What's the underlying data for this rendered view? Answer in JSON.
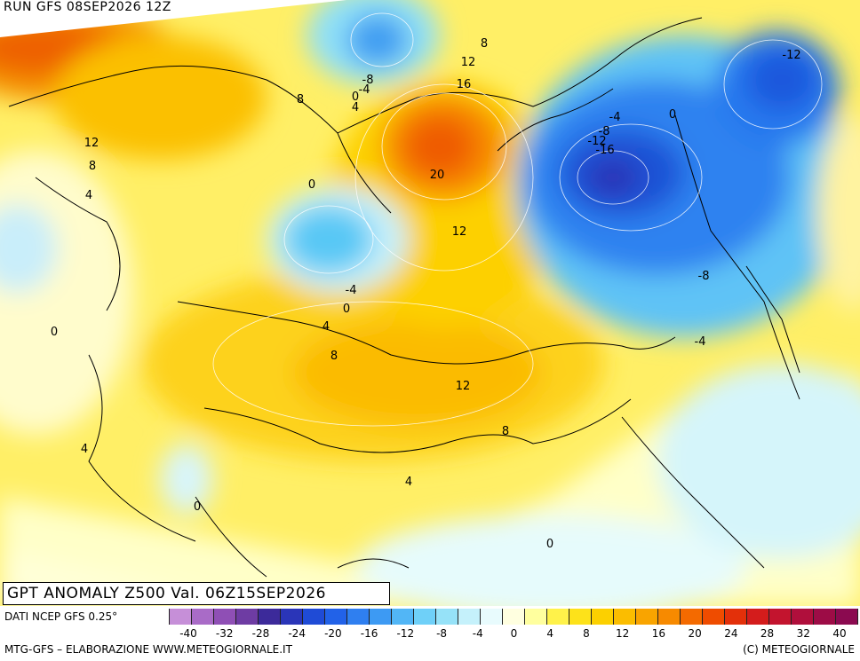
{
  "header": {
    "run": "RUN GFS 08SEP2026 12Z"
  },
  "title": "GPT ANOMALY Z500 Val. 06Z15SEP2026",
  "footer": {
    "source": "DATI NCEP GFS 0.25°",
    "credit_left": "MTG-GFS – ELABORAZIONE WWW.METEOGIORNALE.IT",
    "credit_right": "(C) METEOGIORNALE"
  },
  "scale": {
    "colors": [
      "#c68fd8",
      "#a96bc7",
      "#8f4fb5",
      "#6e3ca3",
      "#3c2a9a",
      "#2a35b8",
      "#1f4bd6",
      "#2262e8",
      "#2f7ff0",
      "#3d9af3",
      "#52b6f6",
      "#6fd0f8",
      "#96e2f8",
      "#c5f1fb",
      "#e8fbfd",
      "#ffffe0",
      "#ffff9e",
      "#fff24a",
      "#fde21a",
      "#fcd000",
      "#fbbd00",
      "#f9a400",
      "#f78a00",
      "#f46a00",
      "#ef4c00",
      "#e3300a",
      "#d41c1c",
      "#c3142e",
      "#b00f3c",
      "#9d0c46",
      "#8b0a50"
    ],
    "ticks": [
      "-40",
      "-32",
      "-28",
      "-24",
      "-20",
      "-16",
      "-12",
      "-8",
      "-4",
      "0",
      "4",
      "8",
      "12",
      "16",
      "20",
      "24",
      "28",
      "32",
      "40"
    ]
  },
  "contour_labels": [
    {
      "text": "8"
    },
    {
      "text": "12"
    },
    {
      "text": "16"
    },
    {
      "text": "20"
    },
    {
      "text": "-8"
    },
    {
      "text": "-4"
    },
    {
      "text": "0"
    },
    {
      "text": "4"
    },
    {
      "text": "8"
    },
    {
      "text": "12"
    },
    {
      "text": "8"
    },
    {
      "text": "4"
    },
    {
      "text": "0"
    },
    {
      "text": "12"
    },
    {
      "text": "-4"
    },
    {
      "text": "0"
    },
    {
      "text": "4"
    },
    {
      "text": "8"
    },
    {
      "text": "0"
    },
    {
      "text": "4"
    },
    {
      "text": "0"
    },
    {
      "text": "12"
    },
    {
      "text": "8"
    },
    {
      "text": "4"
    },
    {
      "text": "0"
    },
    {
      "text": "-4"
    },
    {
      "text": "-8"
    },
    {
      "text": "-12"
    },
    {
      "text": "-16"
    },
    {
      "text": "0"
    },
    {
      "text": "-12"
    },
    {
      "text": "-8"
    },
    {
      "text": "-4"
    }
  ]
}
